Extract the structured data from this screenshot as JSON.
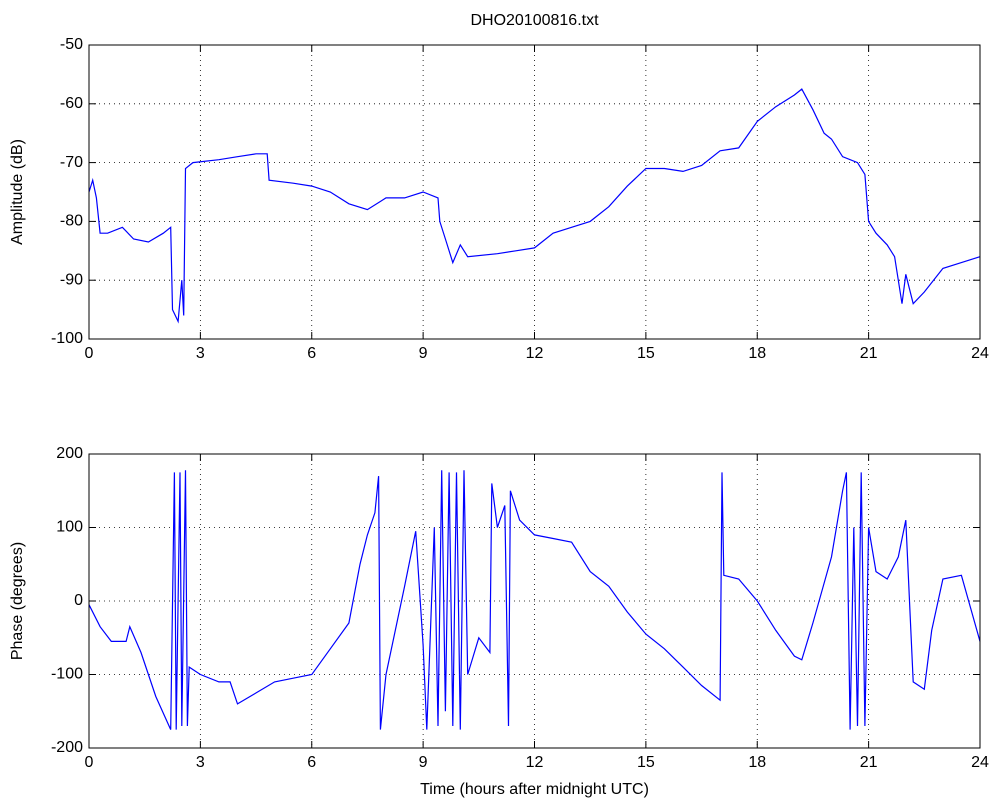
{
  "chart_data": [
    {
      "type": "line",
      "title": "DHO20100816.txt",
      "ylabel": "Amplitude (dB)",
      "color": "#0000ff",
      "grid": true,
      "xlim": [
        0,
        24
      ],
      "xticks": [
        0,
        3,
        6,
        9,
        12,
        15,
        18,
        21,
        24
      ],
      "ylim": [
        -100,
        -50
      ],
      "yticks": [
        -100,
        -90,
        -80,
        -70,
        -60,
        -50
      ],
      "x": [
        0,
        0.1,
        0.2,
        0.3,
        0.5,
        0.9,
        1.2,
        1.6,
        2.0,
        2.2,
        2.25,
        2.4,
        2.5,
        2.55,
        2.6,
        2.8,
        3.5,
        4.0,
        4.5,
        4.8,
        4.85,
        5.5,
        6.0,
        6.5,
        7.0,
        7.5,
        8.0,
        8.5,
        9.0,
        9.4,
        9.45,
        9.6,
        9.8,
        10.0,
        10.2,
        11.0,
        11.5,
        12.0,
        12.5,
        13.0,
        13.5,
        14.0,
        14.5,
        15.0,
        15.5,
        16.0,
        16.5,
        17.0,
        17.5,
        18.0,
        18.5,
        19.0,
        19.2,
        19.5,
        19.8,
        20.0,
        20.3,
        20.7,
        20.9,
        21.0,
        21.2,
        21.5,
        21.7,
        21.9,
        22.0,
        22.2,
        22.5,
        23.0,
        23.5,
        24
      ],
      "values": [
        -75,
        -73,
        -76,
        -82,
        -82,
        -81,
        -83,
        -83.5,
        -82,
        -81,
        -95,
        -97,
        -90,
        -96,
        -71,
        -70,
        -69.5,
        -69,
        -68.5,
        -68.5,
        -73,
        -73.5,
        -74,
        -75,
        -77,
        -78,
        -76,
        -76,
        -75,
        -76,
        -80,
        -83,
        -87,
        -84,
        -86,
        -85.5,
        -85,
        -84.5,
        -82,
        -81,
        -80,
        -77.5,
        -74,
        -71,
        -71,
        -71.5,
        -70.5,
        -68,
        -67.5,
        -63,
        -60.5,
        -58.5,
        -57.5,
        -61,
        -65,
        -66,
        -69,
        -70,
        -72,
        -80,
        -82,
        -84,
        -86,
        -94,
        -89,
        -94,
        -92,
        -88,
        -87,
        -86
      ]
    },
    {
      "type": "line",
      "xlabel": "Time (hours after midnight UTC)",
      "ylabel": "Phase (degrees)",
      "color": "#0000ff",
      "grid": true,
      "xlim": [
        0,
        24
      ],
      "xticks": [
        0,
        3,
        6,
        9,
        12,
        15,
        18,
        21,
        24
      ],
      "ylim": [
        -200,
        200
      ],
      "yticks": [
        -200,
        -100,
        0,
        100,
        200
      ],
      "x": [
        0,
        0.3,
        0.6,
        1.0,
        1.1,
        1.4,
        1.8,
        2.2,
        2.3,
        2.35,
        2.45,
        2.5,
        2.6,
        2.65,
        2.7,
        3.0,
        3.5,
        3.8,
        4.0,
        4.5,
        5.0,
        5.5,
        6.0,
        6.5,
        7.0,
        7.3,
        7.5,
        7.7,
        7.8,
        7.85,
        8.0,
        8.5,
        8.8,
        9.0,
        9.1,
        9.3,
        9.4,
        9.5,
        9.6,
        9.7,
        9.8,
        9.9,
        10.0,
        10.1,
        10.2,
        10.5,
        10.8,
        10.85,
        11.0,
        11.2,
        11.3,
        11.35,
        11.6,
        12.0,
        12.5,
        13.0,
        13.5,
        14.0,
        14.5,
        15.0,
        15.5,
        16.0,
        16.5,
        17.0,
        17.05,
        17.1,
        17.5,
        18.0,
        18.5,
        19.0,
        19.2,
        19.5,
        20.0,
        20.3,
        20.4,
        20.5,
        20.6,
        20.7,
        20.8,
        20.9,
        21.0,
        21.2,
        21.5,
        21.8,
        22.0,
        22.2,
        22.5,
        22.7,
        23.0,
        23.5,
        24.0
      ],
      "values": [
        -5,
        -35,
        -55,
        -55,
        -35,
        -70,
        -130,
        -175,
        175,
        -175,
        175,
        -170,
        178,
        -170,
        -90,
        -100,
        -110,
        -110,
        -140,
        -125,
        -110,
        -105,
        -100,
        -65,
        -30,
        50,
        90,
        120,
        170,
        -175,
        -100,
        20,
        95,
        -60,
        -175,
        100,
        -170,
        178,
        -150,
        175,
        -170,
        175,
        -175,
        178,
        -100,
        -50,
        -70,
        160,
        100,
        130,
        -170,
        150,
        110,
        90,
        85,
        80,
        40,
        20,
        -15,
        -45,
        -65,
        -90,
        -115,
        -135,
        175,
        35,
        30,
        0,
        -40,
        -75,
        -80,
        -30,
        60,
        150,
        175,
        -175,
        100,
        -170,
        175,
        -170,
        100,
        40,
        30,
        60,
        110,
        -110,
        -120,
        -40,
        30,
        35,
        -55
      ]
    }
  ]
}
